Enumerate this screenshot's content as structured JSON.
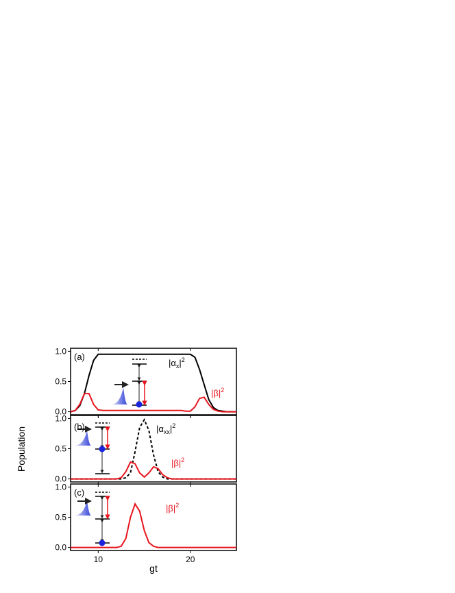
{
  "chart_data": [
    {
      "type": "line",
      "xlim": [
        7,
        25
      ],
      "ylim": [
        -0.05,
        1.05
      ],
      "xticks": [
        10,
        20
      ],
      "yticks": [
        {
          "value": 0,
          "label": "0.0"
        },
        {
          "value": 0.5,
          "label": "0.5"
        },
        {
          "value": 1,
          "label": "1.0"
        }
      ],
      "x": [
        7,
        7.5,
        8,
        8.5,
        9,
        9.5,
        10,
        10.5,
        11,
        11.5,
        12,
        12.5,
        13,
        13.5,
        14,
        14.5,
        15,
        15.5,
        16,
        16.5,
        17,
        17.5,
        18,
        18.5,
        19,
        19.5,
        20,
        20.5,
        21,
        21.5,
        22,
        22.5,
        23,
        23.5,
        24,
        24.5,
        25
      ],
      "series": [
        {
          "color": "#000000",
          "dash": false,
          "values": [
            0,
            0.02,
            0.1,
            0.3,
            0.6,
            0.85,
            0.95,
            0.95,
            0.95,
            0.95,
            0.95,
            0.95,
            0.95,
            0.95,
            0.95,
            0.95,
            0.95,
            0.95,
            0.95,
            0.95,
            0.95,
            0.95,
            0.95,
            0.95,
            0.95,
            0.95,
            0.95,
            0.9,
            0.7,
            0.45,
            0.2,
            0.07,
            0.02,
            0.01,
            0,
            0,
            0
          ]
        },
        {
          "color": "#e8141c",
          "dash": false,
          "values": [
            0,
            0.02,
            0.12,
            0.3,
            0.3,
            0.12,
            0.03,
            0.02,
            0.02,
            0.02,
            0.02,
            0.02,
            0.02,
            0.02,
            0.02,
            0.02,
            0.02,
            0.02,
            0.02,
            0.02,
            0.02,
            0.02,
            0.02,
            0.02,
            0.02,
            0.01,
            0.01,
            0.08,
            0.22,
            0.24,
            0.12,
            0.04,
            0.01,
            0,
            0,
            0,
            0
          ]
        }
      ],
      "annotations": [
        {
          "text": "(a)",
          "color": "#000000"
        },
        {
          "text": "|α",
          "sub": "x",
          "tail": "|",
          "sup": "2",
          "color": "#000000"
        },
        {
          "text": "|β|",
          "sup": "2",
          "color": "#e8141c"
        }
      ]
    },
    {
      "type": "line",
      "xlim": [
        7,
        25
      ],
      "ylim": [
        -0.05,
        1.05
      ],
      "xticks": [
        10,
        20
      ],
      "yticks": [
        {
          "value": 0,
          "label": "0.0"
        },
        {
          "value": 0.5,
          "label": "0.5"
        },
        {
          "value": 1,
          "label": "1.0"
        }
      ],
      "y_label": "Population",
      "x": [
        7,
        7.5,
        8,
        8.5,
        9,
        9.5,
        10,
        10.5,
        11,
        11.5,
        12,
        12.5,
        13,
        13.5,
        14,
        14.5,
        15,
        15.5,
        16,
        16.5,
        17,
        17.5,
        18,
        18.5,
        19,
        19.5,
        20,
        20.5,
        21,
        21.5,
        22,
        22.5,
        23,
        23.5,
        24,
        24.5,
        25
      ],
      "series": [
        {
          "color": "#000000",
          "dash": true,
          "values": [
            0,
            0,
            0,
            0,
            0,
            0,
            0,
            0,
            0,
            0,
            0,
            0,
            0.02,
            0.1,
            0.45,
            0.85,
            0.98,
            0.8,
            0.4,
            0.12,
            0.03,
            0,
            0,
            0,
            0,
            0,
            0,
            0,
            0,
            0,
            0,
            0,
            0,
            0,
            0,
            0,
            0
          ]
        },
        {
          "color": "#e8141c",
          "dash": false,
          "values": [
            0,
            0,
            0,
            0,
            0,
            0,
            0,
            0,
            0,
            0,
            0,
            0.02,
            0.12,
            0.28,
            0.25,
            0.1,
            0.03,
            0.1,
            0.2,
            0.17,
            0.07,
            0.02,
            0,
            0,
            0,
            0,
            0,
            0,
            0,
            0,
            0,
            0,
            0,
            0,
            0,
            0,
            0
          ]
        }
      ],
      "annotations": [
        {
          "text": "(b)",
          "color": "#000000"
        },
        {
          "text": "|α",
          "sub": "xx",
          "tail": "|",
          "sup": "2",
          "color": "#000000"
        },
        {
          "text": "|β|",
          "sup": "2",
          "color": "#e8141c"
        }
      ]
    },
    {
      "type": "line",
      "xlim": [
        7,
        25
      ],
      "ylim": [
        -0.05,
        1.05
      ],
      "xticks": [
        10,
        20
      ],
      "yticks": [
        {
          "value": 0,
          "label": "0.0"
        },
        {
          "value": 0.5,
          "label": "0.5"
        },
        {
          "value": 1,
          "label": "1.0"
        }
      ],
      "x_label": "gt",
      "x": [
        7,
        7.5,
        8,
        8.5,
        9,
        9.5,
        10,
        10.5,
        11,
        11.5,
        12,
        12.5,
        13,
        13.5,
        14,
        14.5,
        15,
        15.5,
        16,
        16.5,
        17,
        17.5,
        18,
        18.5,
        19,
        19.5,
        20,
        20.5,
        21,
        21.5,
        22,
        22.5,
        23,
        23.5,
        24,
        24.5,
        25
      ],
      "series": [
        {
          "color": "#e8141c",
          "dash": false,
          "values": [
            0,
            0,
            0,
            0,
            0,
            0,
            0,
            0,
            0,
            0,
            0,
            0.02,
            0.15,
            0.5,
            0.72,
            0.6,
            0.28,
            0.08,
            0.02,
            0,
            0,
            0,
            0,
            0,
            0,
            0,
            0,
            0,
            0,
            0,
            0,
            0,
            0,
            0,
            0,
            0,
            0
          ]
        }
      ],
      "annotations": [
        {
          "text": "(c)",
          "color": "#000000"
        },
        {
          "text": "|β|",
          "sup": "2",
          "color": "#e8141c"
        }
      ]
    }
  ]
}
